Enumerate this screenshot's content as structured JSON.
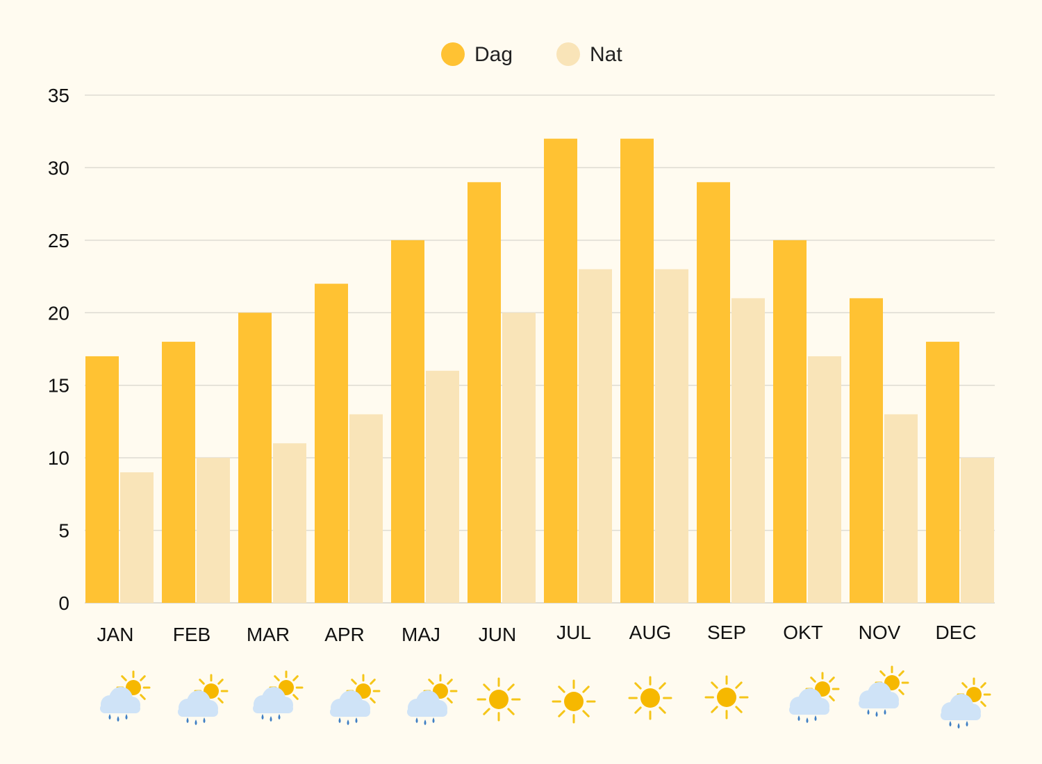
{
  "chart_data": {
    "type": "bar",
    "title": "",
    "xlabel": "",
    "ylabel": "",
    "ylim": [
      0,
      35
    ],
    "yticks": [
      0,
      5,
      10,
      15,
      20,
      25,
      30,
      35
    ],
    "grid": true,
    "legend_position": "top-center",
    "categories": [
      "JAN",
      "FEB",
      "MAR",
      "APR",
      "MAJ",
      "JUN",
      "JUL",
      "AUG",
      "SEP",
      "OKT",
      "NOV",
      "DEC"
    ],
    "series": [
      {
        "name": "Dag",
        "color": "#ffc233",
        "values": [
          17,
          18,
          20,
          22,
          25,
          29,
          32,
          32,
          29,
          25,
          21,
          18
        ]
      },
      {
        "name": "Nat",
        "color": "#f9e4b8",
        "values": [
          9,
          10,
          11,
          13,
          16,
          20,
          23,
          23,
          21,
          17,
          13,
          10
        ]
      }
    ],
    "weather_icons": [
      "rain-cloud-sun-icon",
      "rain-cloud-sun-icon",
      "rain-cloud-sun-icon",
      "rain-cloud-sun-icon",
      "rain-cloud-sun-icon",
      "sun-icon",
      "sun-icon",
      "sun-icon",
      "sun-icon",
      "rain-cloud-sun-icon",
      "rain-cloud-sun-icon",
      "rain-cloud-sun-icon"
    ],
    "colors": {
      "background": "#fffbf0",
      "grid": "#dedbd2",
      "sun": "#f6b800",
      "sun_ray": "#f5c518",
      "cloud": "#cfe3f7",
      "rain": "#3f7fc4"
    }
  }
}
